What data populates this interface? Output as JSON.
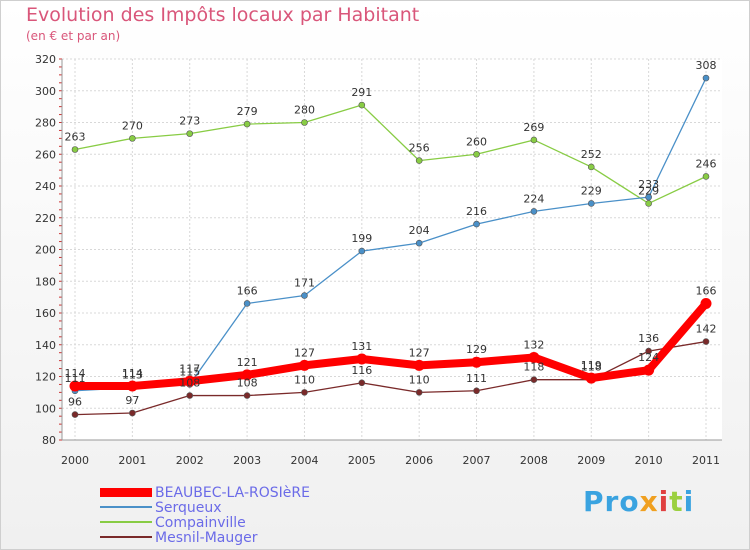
{
  "brand": {
    "text_parts": [
      "Pro",
      "x",
      "i",
      "t",
      "i"
    ],
    "colors": [
      "#3aa3e0",
      "#f0a020",
      "#e04040",
      "#9bd040",
      "#3aa3e0"
    ]
  },
  "chart_data": {
    "type": "line",
    "title": "Evolution des Impôts locaux par Habitant",
    "subtitle": "(en € et par an)",
    "xlabel": "",
    "ylabel": "",
    "x": [
      "2000",
      "2001",
      "2002",
      "2003",
      "2004",
      "2005",
      "2006",
      "2007",
      "2008",
      "2009",
      "2010",
      "2011"
    ],
    "ylim": [
      80,
      320
    ],
    "yticks": [
      80,
      100,
      120,
      140,
      160,
      180,
      200,
      220,
      240,
      260,
      280,
      300,
      320
    ],
    "grid": true,
    "legend_position": "bottom-left",
    "series": [
      {
        "name": "BEAUBEC-LA-ROSIèRE",
        "color": "#ff0000",
        "values": [
          114,
          114,
          117,
          121,
          127,
          131,
          127,
          129,
          132,
          119,
          124,
          166
        ],
        "labels": [
          "114",
          "114",
          "117",
          "121",
          "127",
          "131",
          "127",
          "129",
          "132",
          "119",
          "124",
          "166"
        ]
      },
      {
        "name": "Serqueux",
        "color": "#4a90c8",
        "values": [
          111,
          113,
          115,
          166,
          171,
          199,
          204,
          216,
          224,
          229,
          233,
          308
        ],
        "labels": [
          "111",
          "113",
          "115",
          "166",
          "171",
          "199",
          "204",
          "216",
          "224",
          "229",
          "233",
          "308"
        ]
      },
      {
        "name": "Compainville",
        "color": "#88cc44",
        "values": [
          263,
          270,
          273,
          279,
          280,
          291,
          256,
          260,
          269,
          252,
          229,
          246
        ],
        "labels": [
          "263",
          "270",
          "273",
          "279",
          "280",
          "291",
          "256",
          "260",
          "269",
          "252",
          "229",
          "246"
        ]
      },
      {
        "name": "Mesnil-Mauger",
        "color": "#7a2a2a",
        "values": [
          96,
          97,
          108,
          108,
          110,
          116,
          110,
          111,
          118,
          118,
          136,
          142
        ],
        "labels": [
          "96",
          "97",
          "108",
          "108",
          "110",
          "116",
          "110",
          "111",
          "118",
          "118",
          "136",
          "142"
        ]
      }
    ]
  }
}
